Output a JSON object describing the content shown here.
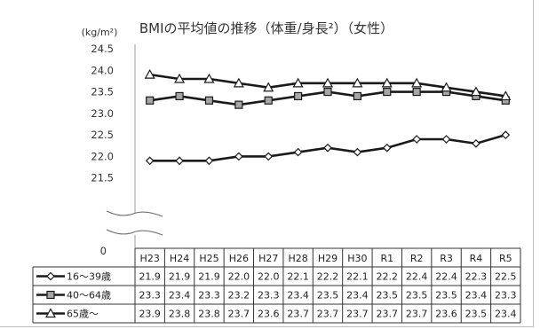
{
  "chart_data": {
    "type": "line",
    "title": "BMIの平均値の推移（体重/身長²）（女性）",
    "unit_label": "(kg/m²)",
    "categories": [
      "H23",
      "H24",
      "H25",
      "H26",
      "H27",
      "H28",
      "H29",
      "H30",
      "R1",
      "R2",
      "R3",
      "R4",
      "R5"
    ],
    "ylim": [
      21.0,
      24.5
    ],
    "y_ticks": [
      "24.5",
      "24.0",
      "23.5",
      "23.0",
      "22.5",
      "22.0",
      "21.5"
    ],
    "y_zero_label": "0",
    "axis_break": true,
    "grid": false,
    "legend_placement": "data-table",
    "series": [
      {
        "name": "16～39歳",
        "marker": "diamond",
        "color": "#1a1a1a",
        "values": [
          21.9,
          21.9,
          21.9,
          22.0,
          22.0,
          22.1,
          22.2,
          22.1,
          22.2,
          22.4,
          22.4,
          22.3,
          22.5
        ],
        "labels": [
          "21.9",
          "21.9",
          "21.9",
          "22.0",
          "22.0",
          "22.1",
          "22.2",
          "22.1",
          "22.2",
          "22.4",
          "22.4",
          "22.3",
          "22.5"
        ]
      },
      {
        "name": "40～64歳",
        "marker": "square",
        "color": "#1a1a1a",
        "values": [
          23.3,
          23.4,
          23.3,
          23.2,
          23.3,
          23.4,
          23.5,
          23.4,
          23.5,
          23.5,
          23.5,
          23.4,
          23.3
        ],
        "labels": [
          "23.3",
          "23.4",
          "23.3",
          "23.2",
          "23.3",
          "23.4",
          "23.5",
          "23.4",
          "23.5",
          "23.5",
          "23.5",
          "23.4",
          "23.3"
        ]
      },
      {
        "name": "65歳～",
        "marker": "triangle",
        "color": "#1a1a1a",
        "values": [
          23.9,
          23.8,
          23.8,
          23.7,
          23.6,
          23.7,
          23.7,
          23.7,
          23.7,
          23.7,
          23.6,
          23.5,
          23.4
        ],
        "labels": [
          "23.9",
          "23.8",
          "23.8",
          "23.7",
          "23.6",
          "23.7",
          "23.7",
          "23.7",
          "23.7",
          "23.7",
          "23.6",
          "23.5",
          "23.4"
        ]
      }
    ]
  }
}
